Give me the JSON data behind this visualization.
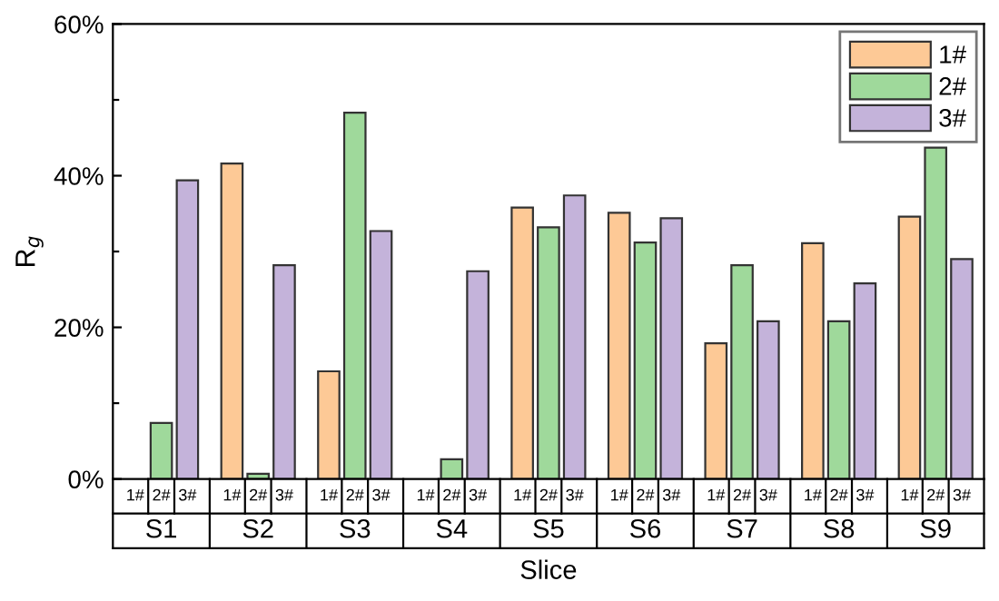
{
  "chart_data": {
    "type": "bar",
    "xlabel": "Slice",
    "ylabel": "R$_{g}$",
    "categories": [
      "S1",
      "S2",
      "S3",
      "S4",
      "S5",
      "S6",
      "S7",
      "S8",
      "S9"
    ],
    "series": [
      {
        "name": "1#",
        "color": "#fdc996",
        "values": [
          null,
          41.6,
          14.2,
          null,
          35.8,
          35.1,
          17.9,
          31.1,
          34.6
        ]
      },
      {
        "name": "2#",
        "color": "#9fd99b",
        "values": [
          7.4,
          0.7,
          48.3,
          2.6,
          33.2,
          31.2,
          28.2,
          20.8,
          43.7
        ]
      },
      {
        "name": "3#",
        "color": "#c4b3da",
        "values": [
          39.4,
          28.2,
          32.7,
          27.4,
          37.4,
          34.4,
          20.8,
          25.8,
          29.0
        ]
      }
    ],
    "ylim": [
      0,
      60
    ],
    "yticks": [
      {
        "value": 0,
        "label": "0%"
      },
      {
        "value": 10,
        "label": null
      },
      {
        "value": 20,
        "label": "20%"
      },
      {
        "value": 30,
        "label": null
      },
      {
        "value": 40,
        "label": "40%"
      },
      {
        "value": 50,
        "label": null
      },
      {
        "value": 60,
        "label": "60%"
      }
    ],
    "grid": false,
    "legend": "top right"
  }
}
